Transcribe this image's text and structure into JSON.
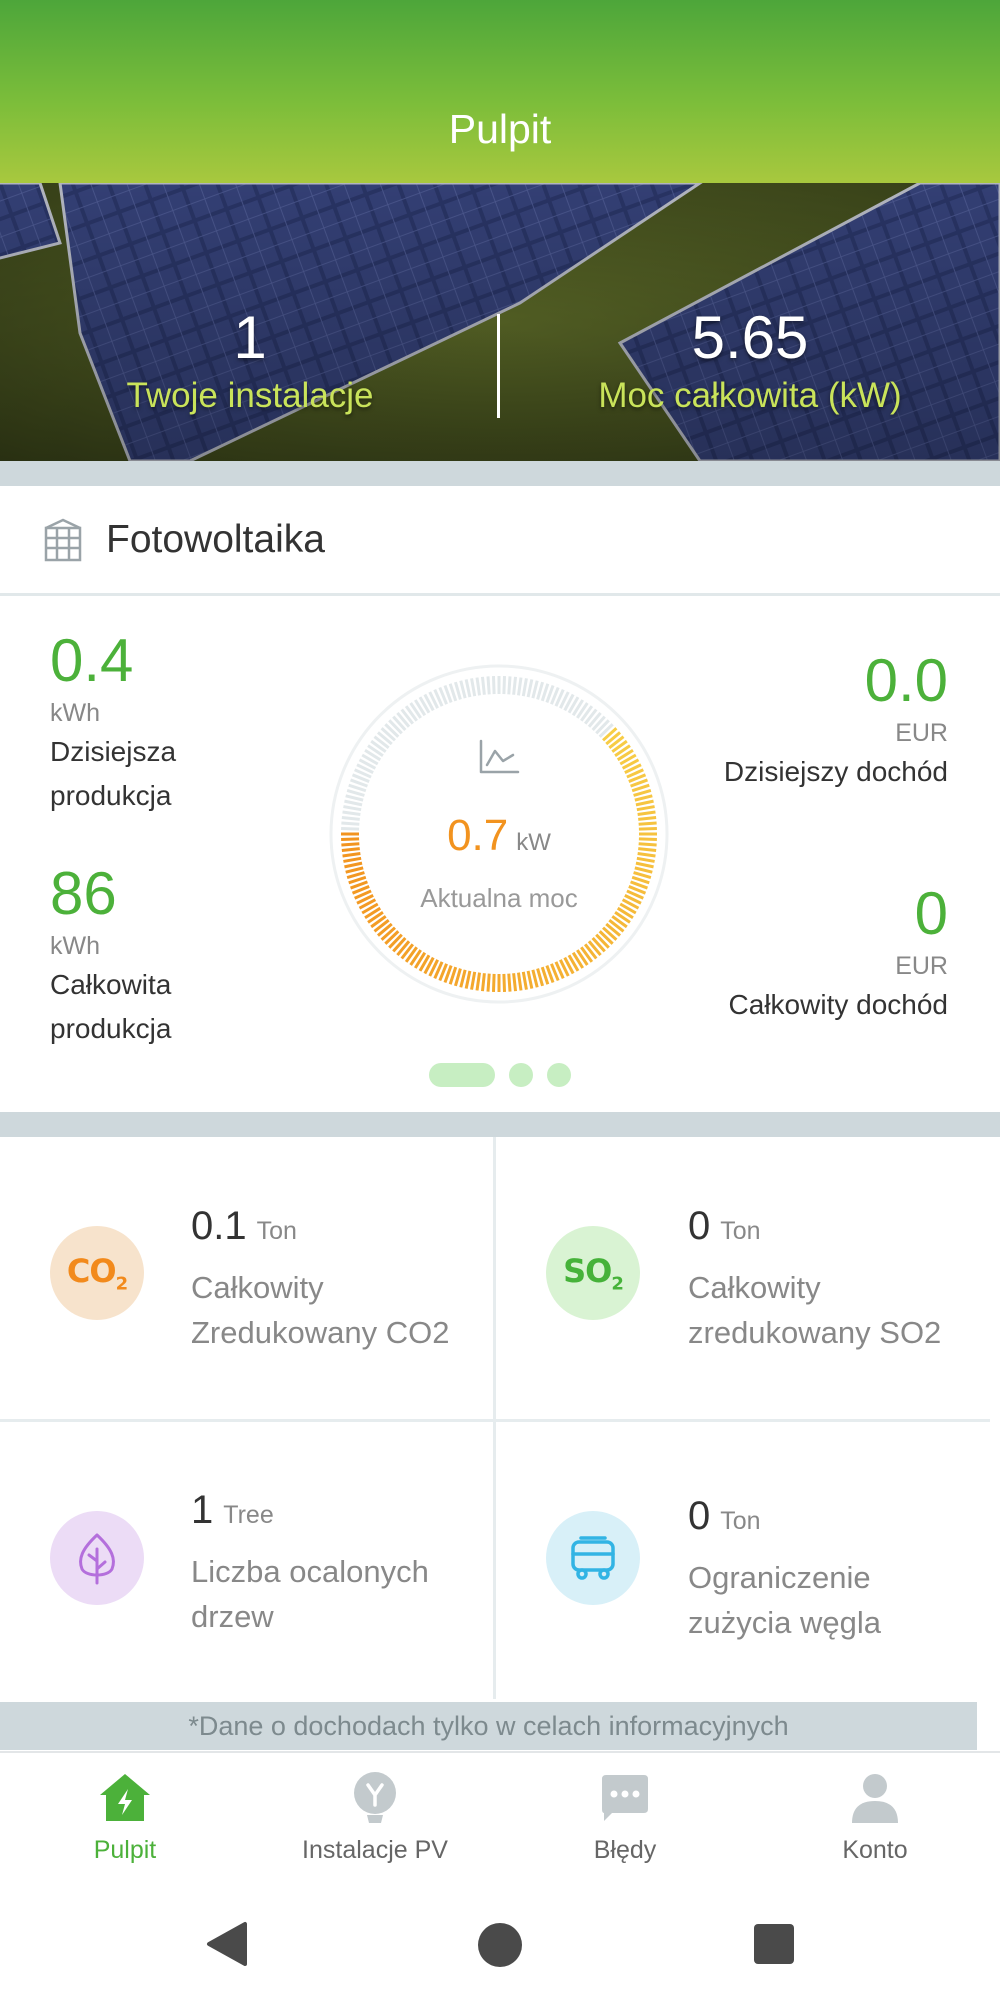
{
  "header": {
    "title": "Pulpit"
  },
  "hero": {
    "installations": {
      "value": "1",
      "label": "Twoje instalacje"
    },
    "total_power": {
      "value": "5.65",
      "label": "Moc całkowita (kW)"
    }
  },
  "pv": {
    "title": "Fotowoltaika",
    "today_production": {
      "value": "0.4",
      "unit": "kWh",
      "label_line1": "Dzisiejsza",
      "label_line2": "produkcja"
    },
    "total_production": {
      "value": "86",
      "unit": "kWh",
      "label_line1": "Całkowita",
      "label_line2": "produkcja"
    },
    "today_income": {
      "value": "0.0",
      "unit": "EUR",
      "label": "Dzisiejszy dochód"
    },
    "total_income": {
      "value": "0",
      "unit": "EUR",
      "label": "Całkowity dochód"
    },
    "gauge": {
      "value": "0.7",
      "unit": "kW",
      "label": "Aktualna moc",
      "fraction": 0.62
    },
    "pager": {
      "count": 3,
      "active": 0
    }
  },
  "environment": {
    "co2": {
      "icon_text": "CO",
      "icon_sub": "2",
      "value": "0.1",
      "unit": "Ton",
      "label_line1": "Całkowity",
      "label_line2": "Zredukowany CO2"
    },
    "so2": {
      "icon_text": "SO",
      "icon_sub": "2",
      "value": "0",
      "unit": "Ton",
      "label_line1": "Całkowity",
      "label_line2": "zredukowany SO2"
    },
    "trees": {
      "value": "1",
      "unit": "Tree",
      "label_line1": "Liczba ocalonych",
      "label_line2": "drzew"
    },
    "coal": {
      "value": "0",
      "unit": "Ton",
      "label_line1": "Ograniczenie",
      "label_line2": "zużycia węgla"
    }
  },
  "note": "*Dane o dochodach tylko w celach informacyjnych",
  "nav": {
    "items": [
      {
        "label": "Pulpit",
        "icon": "home-bolt-icon",
        "active": true
      },
      {
        "label": "Instalacje PV",
        "icon": "bulb-icon",
        "active": false
      },
      {
        "label": "Błędy",
        "icon": "message-icon",
        "active": false
      },
      {
        "label": "Konto",
        "icon": "user-icon",
        "active": false
      }
    ]
  },
  "colors": {
    "accent_green": "#4cb13a",
    "gauge_orange": "#f2931f",
    "hero_label": "#c9e35a"
  }
}
